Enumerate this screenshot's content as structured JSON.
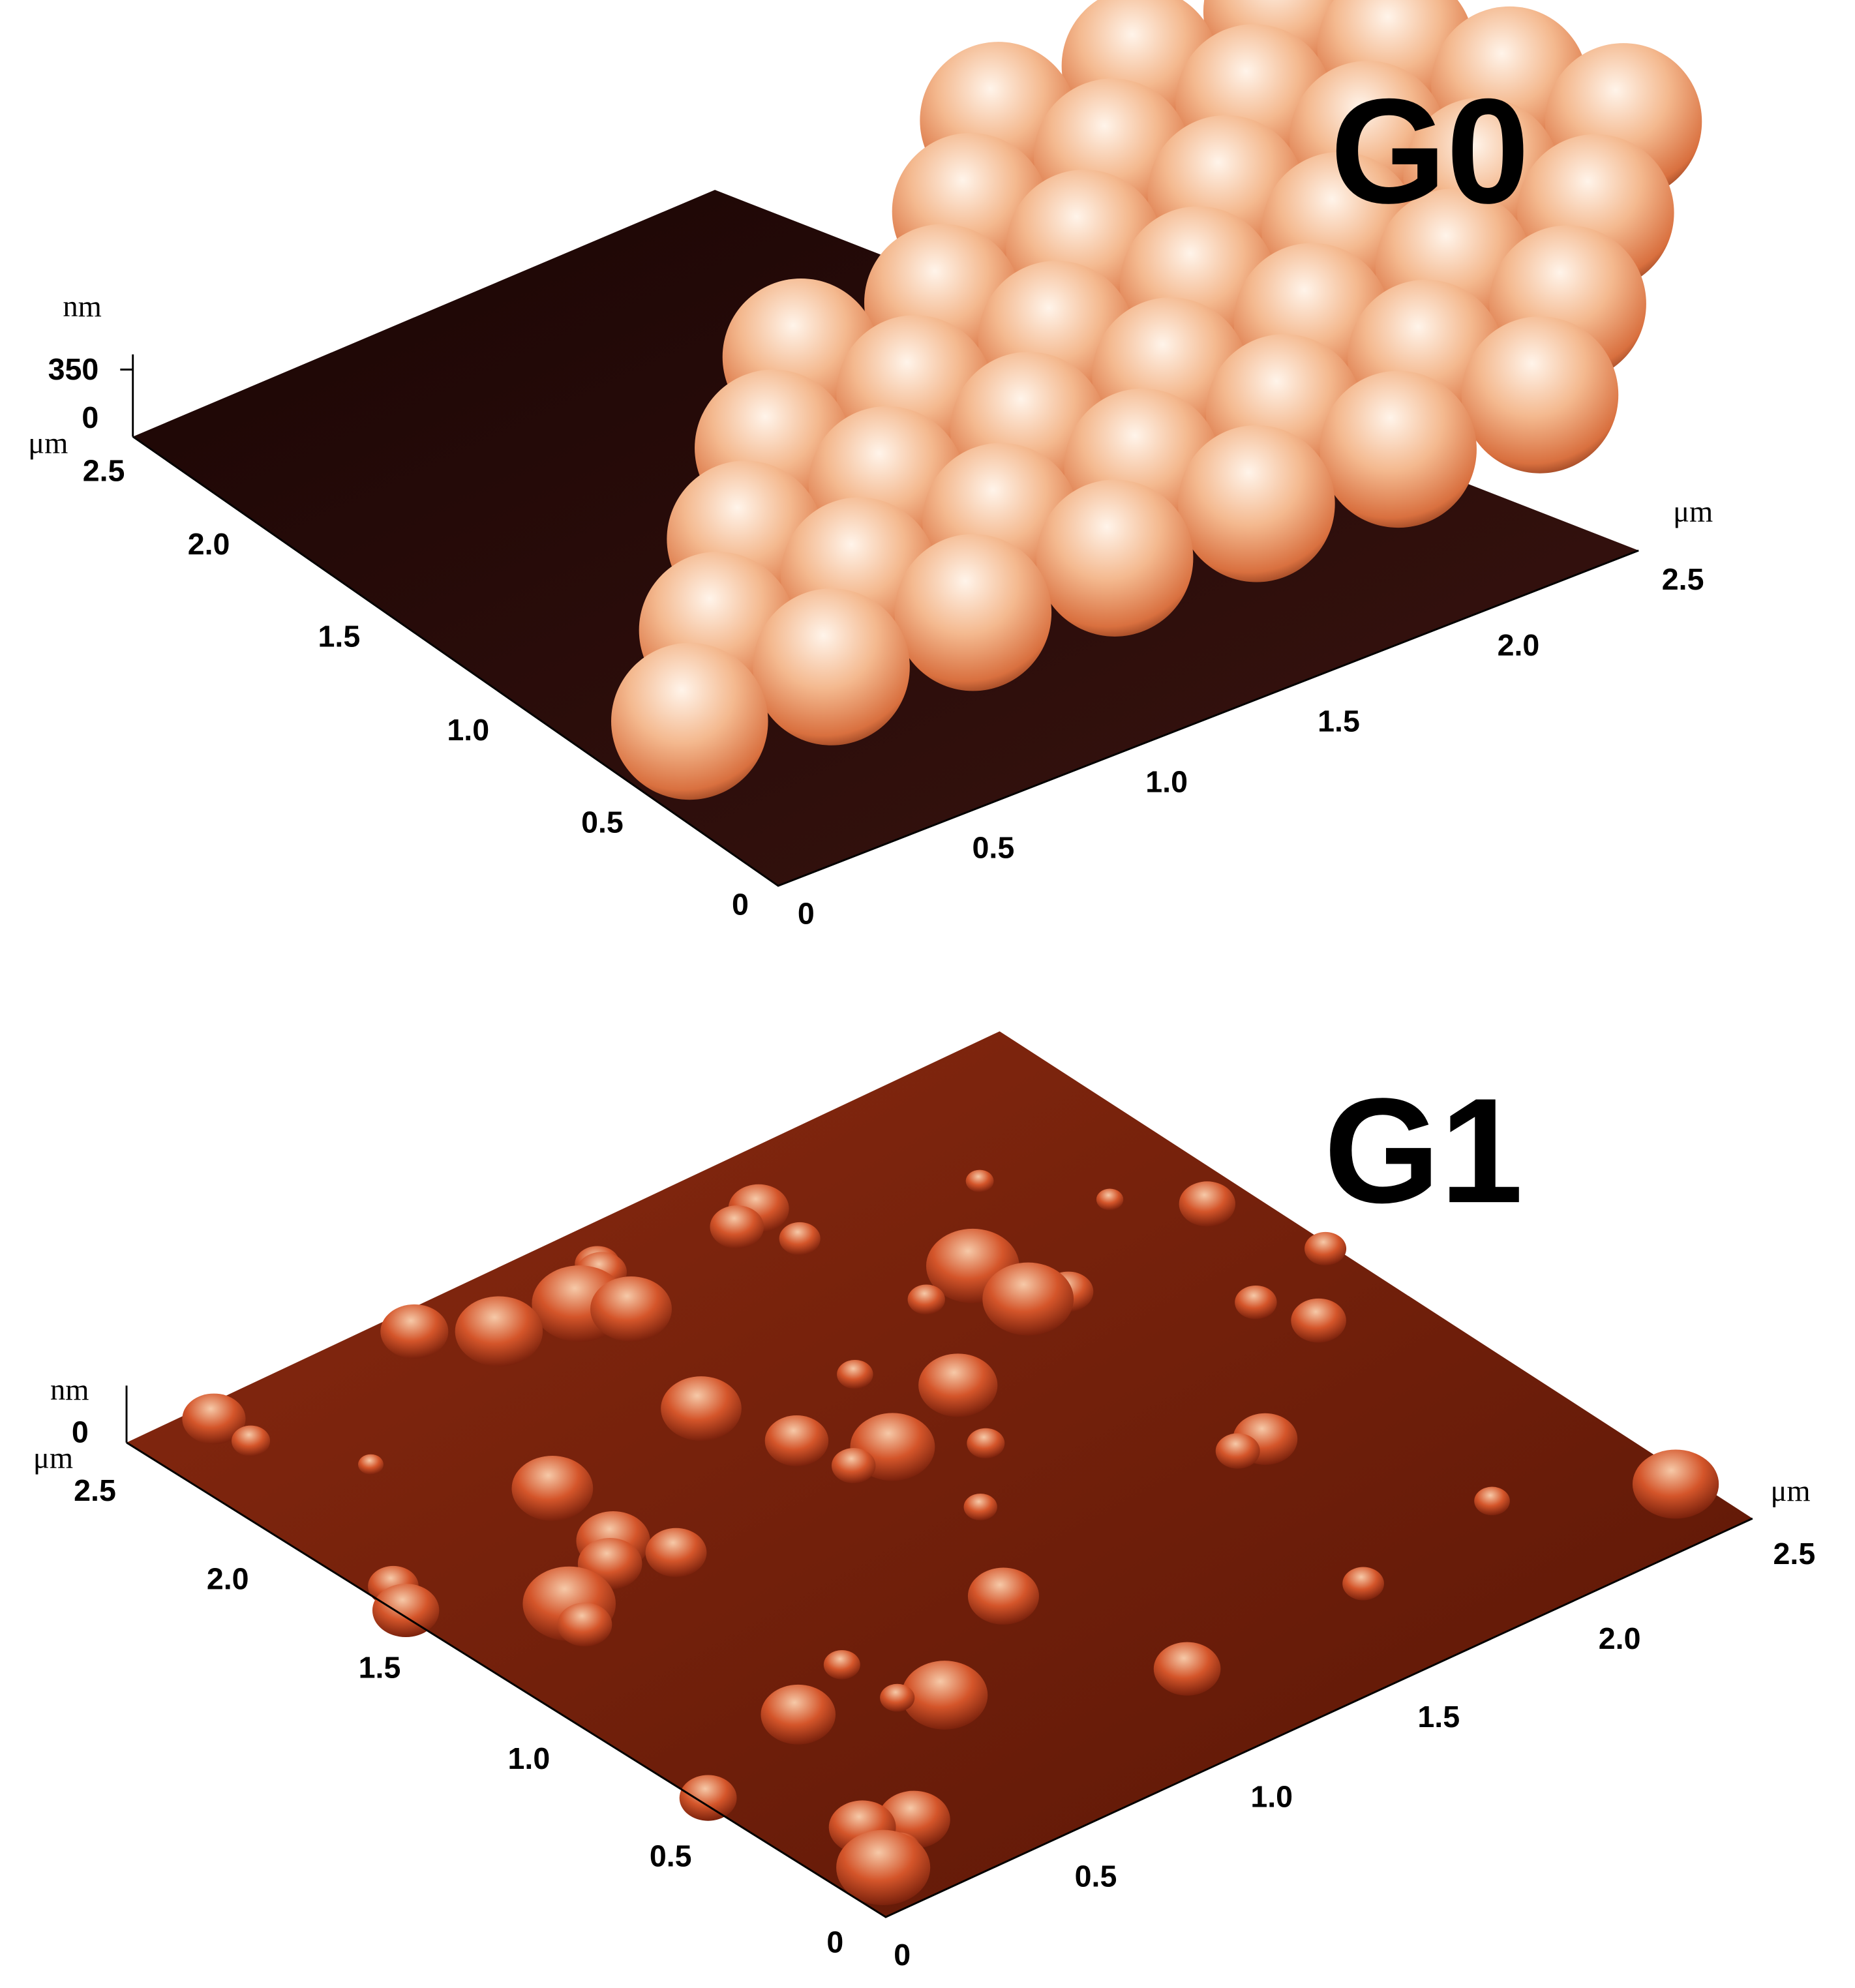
{
  "panels": [
    {
      "label": "G0",
      "z_unit": "nm",
      "z_ticks": [
        "350",
        "0"
      ],
      "left_unit": "μm",
      "left_ticks": [
        "2.5",
        "2.0",
        "1.5",
        "1.0",
        "0.5",
        "0"
      ],
      "right_unit": "μm",
      "right_ticks": [
        "0",
        "0.5",
        "1.0",
        "1.5",
        "2.0",
        "2.5"
      ]
    },
    {
      "label": "G1",
      "z_unit": "nm",
      "z_ticks": [
        "0"
      ],
      "left_unit": "μm",
      "left_ticks": [
        "2.5",
        "2.0",
        "1.5",
        "1.0",
        "0.5",
        "0"
      ],
      "right_unit": "μm",
      "right_ticks": [
        "0",
        "0.5",
        "1.0",
        "1.5",
        "2.0",
        "2.5"
      ]
    }
  ]
}
